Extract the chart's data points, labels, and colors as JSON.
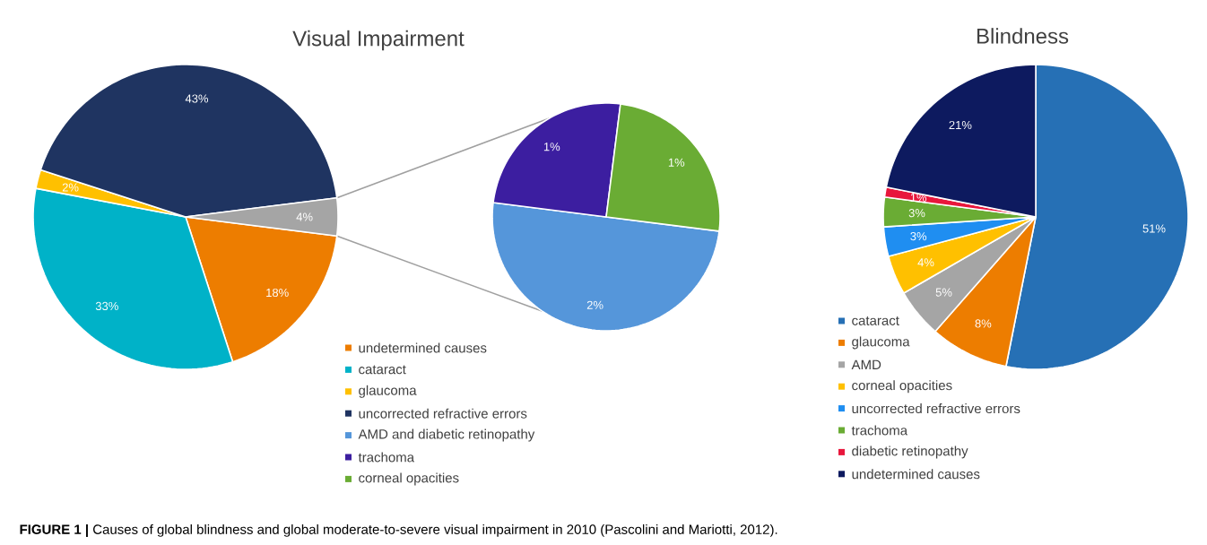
{
  "chart_data": [
    {
      "type": "pie",
      "title": "Visual Impairment",
      "categories": [
        "undetermined causes",
        "cataract",
        "glaucoma",
        "uncorrected refractive errors",
        null
      ],
      "values": [
        18,
        33,
        2,
        43,
        4
      ],
      "value_labels": [
        "18%",
        "33%",
        "2%",
        "43%",
        "4%"
      ],
      "colors": [
        "#ed7d00",
        "#00b2c8",
        "#ffc000",
        "#1f3461",
        "#a5a5a5"
      ],
      "legend": "bottom right",
      "annotations": [
        "**FIGURE 1 |** Causes of global blindness and global moderate-to-severe visual impairment in 2010 (Pascolini and Mariotti, 2012)."
      ]
    },
    {
      "type": "pie",
      "categories": [
        "AMD and diabetic retinopathy",
        "trachoma",
        "corneal opacities"
      ],
      "values": [
        2,
        1,
        1
      ],
      "value_labels": [
        "2%",
        "1%",
        "1%"
      ],
      "colors": [
        "#5596da",
        "#3c1ea0",
        "#6aac34"
      ],
      "legend": "bottom left"
    },
    {
      "type": "pie",
      "title": "Blindness",
      "categories": [
        "cataract",
        "glaucoma",
        "AMD",
        "corneal opacities",
        "uncorrected refractive errors",
        "trachoma",
        "diabetic retinopathy",
        "undetermined causes"
      ],
      "values": [
        51,
        8,
        5,
        4,
        3,
        3,
        1,
        21
      ],
      "value_labels": [
        "51%",
        "8%",
        "5%",
        "4%",
        "3%",
        "3%",
        "1%",
        "21%"
      ],
      "colors": [
        "#2670b5",
        "#ed7d00",
        "#a5a5a5",
        "#ffc000",
        "#1f8ef1",
        "#6aac34",
        "#e8173c",
        "#0d1a5f"
      ],
      "legend": "bottom left"
    }
  ]
}
